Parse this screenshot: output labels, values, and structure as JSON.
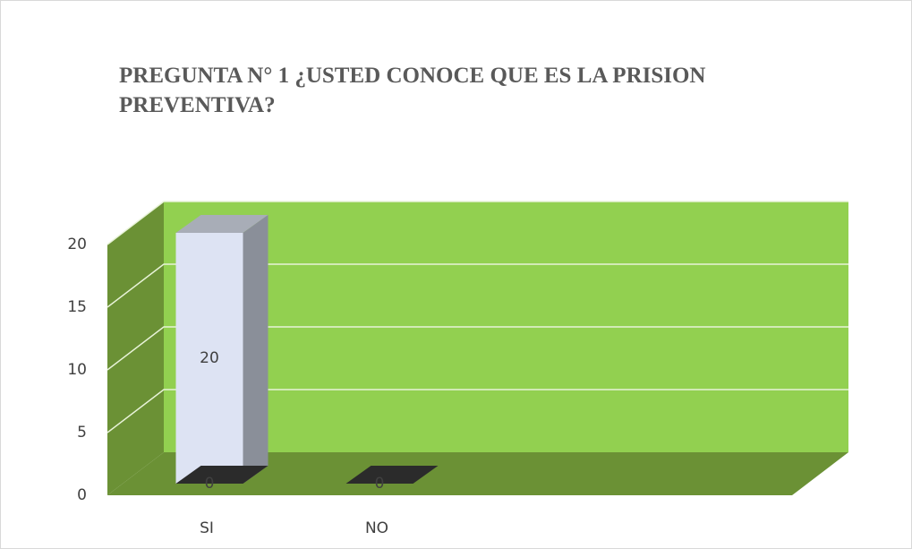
{
  "chart_data": {
    "type": "bar3d",
    "title": "PREGUNTA N° 1 ¿USTED  CONOCE QUE ES LA PRISION PREVENTIVA?",
    "categories": [
      "SI",
      "NO"
    ],
    "series": [
      {
        "color": "#dde3f3",
        "values": [
          20,
          null
        ]
      },
      {
        "color": "#3a3a3a",
        "values": [
          0,
          0
        ]
      }
    ],
    "ylim": [
      0,
      20
    ],
    "yticks": [
      0,
      5,
      10,
      15,
      20
    ],
    "grid": true
  }
}
